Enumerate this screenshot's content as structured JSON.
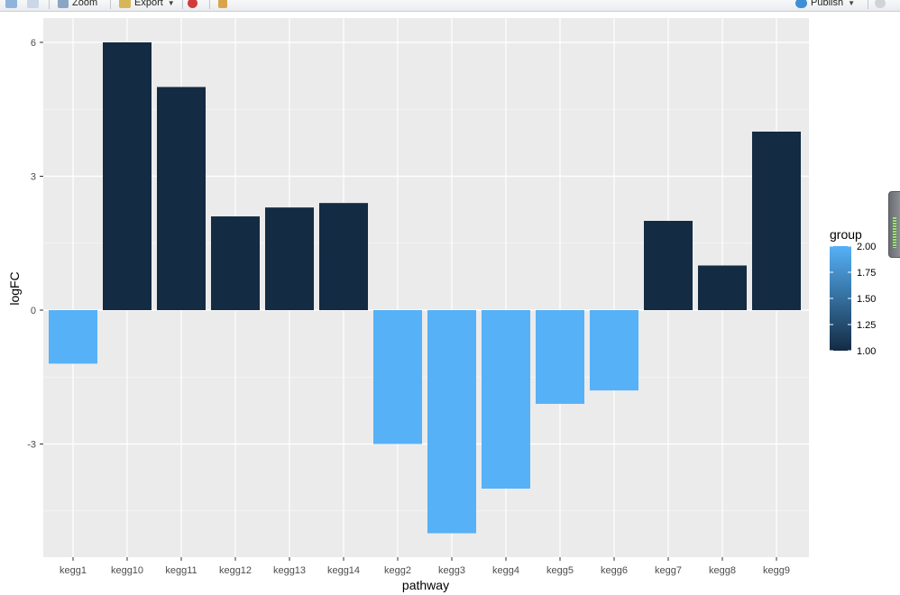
{
  "toolbar": {
    "zoom_label": "Zoom",
    "export_label": "Export",
    "publish_label": "Publish"
  },
  "chart_data": {
    "type": "bar",
    "xlabel": "pathway",
    "ylabel": "logFC",
    "categories": [
      "kegg1",
      "kegg10",
      "kegg11",
      "kegg12",
      "kegg13",
      "kegg14",
      "kegg2",
      "kegg3",
      "kegg4",
      "kegg5",
      "kegg6",
      "kegg7",
      "kegg8",
      "kegg9"
    ],
    "values": [
      -1.2,
      6,
      5,
      2.1,
      2.3,
      2.4,
      -3,
      -5,
      -4,
      -2.1,
      -1.8,
      2,
      1,
      4
    ],
    "group": [
      2,
      1,
      1,
      1,
      1,
      1,
      2,
      2,
      2,
      2,
      2,
      1,
      1,
      1
    ],
    "ylim": [
      -5.6,
      6.5
    ],
    "yticks": [
      -3,
      0,
      3,
      6
    ],
    "grid": true,
    "legend": {
      "title": "group",
      "position": "right",
      "ticks": [
        "2.00",
        "1.75",
        "1.50",
        "1.25",
        "1.00"
      ],
      "color_low": "#132B43",
      "color_high": "#56B1F7"
    },
    "panel_background": "#EBEBEB"
  }
}
